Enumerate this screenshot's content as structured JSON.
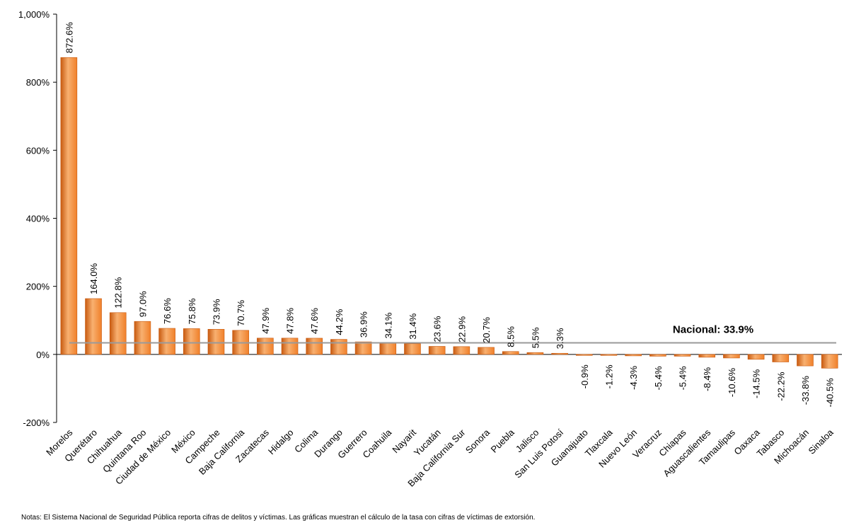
{
  "chart_data": {
    "type": "bar",
    "categories": [
      "Morelos",
      "Querétaro",
      "Chihuahua",
      "Quintana Roo",
      "Ciudad de México",
      "México",
      "Campeche",
      "Baja California",
      "Zacatecas",
      "Hidalgo",
      "Colima",
      "Durango",
      "Guerrero",
      "Coahuila",
      "Nayarit",
      "Yucatán",
      "Baja California Sur",
      "Sonora",
      "Puebla",
      "Jalisco",
      "San Luis Potosí",
      "Guanajuato",
      "Tlaxcala",
      "Nuevo León",
      "Veracruz",
      "Chiapas",
      "Aguascalientes",
      "Tamaulipas",
      "Oaxaca",
      "Tabasco",
      "Michoacán",
      "Sinaloa"
    ],
    "values": [
      872.6,
      164.0,
      122.8,
      97.0,
      76.6,
      75.8,
      73.9,
      70.7,
      47.9,
      47.8,
      47.6,
      44.2,
      36.9,
      34.1,
      31.4,
      23.6,
      22.9,
      20.7,
      8.5,
      5.5,
      3.3,
      -0.9,
      -1.2,
      -4.3,
      -5.4,
      -5.4,
      -8.4,
      -10.6,
      -14.5,
      -22.2,
      -33.8,
      -40.5
    ],
    "labels": [
      "872.6%",
      "164.0%",
      "122.8%",
      "97.0%",
      "76.6%",
      "75.8%",
      "73.9%",
      "70.7%",
      "47.9%",
      "47.8%",
      "47.6%",
      "44.2%",
      "36.9%",
      "34.1%",
      "31.4%",
      "23.6%",
      "22.9%",
      "20.7%",
      "8.5%",
      "5.5%",
      "3.3%",
      "-0.9%",
      "-1.2%",
      "-4.3%",
      "-5.4%",
      "-5.4%",
      "-8.4%",
      "-10.6%",
      "-14.5%",
      "-22.2%",
      "-33.8%",
      "-40.5%"
    ],
    "ylim": [
      -200,
      1000
    ],
    "yticks": [
      -200,
      0,
      200,
      400,
      600,
      800,
      1000
    ],
    "ytick_labels": [
      "-200%",
      "0%",
      "200%",
      "400%",
      "600%",
      "800%",
      "1,000%"
    ],
    "reference_line": {
      "value": 33.9,
      "label": "Nacional: 33.9%"
    },
    "title": "",
    "xlabel": "",
    "ylabel": "",
    "colors": {
      "bar": "#f0802a",
      "bar_light": "#f8b070",
      "bar_dark": "#c85a10",
      "reference": "#9a9a9a",
      "axis": "#000000"
    }
  },
  "notes": "Notas: El Sistema Nacional de Seguridad Pública reporta cifras de delitos y víctimas. Las gráficas muestran el cálculo de la tasa con cifras de víctimas de extorsión."
}
